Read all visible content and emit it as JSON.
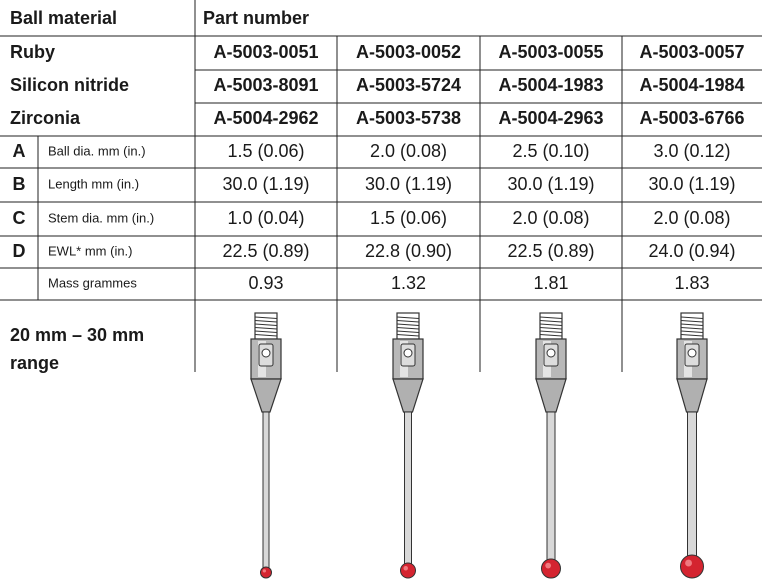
{
  "header": {
    "material": "Ball material",
    "part_number": "Part number"
  },
  "materials": [
    {
      "name": "Ruby",
      "parts": [
        "A-5003-0051",
        "A-5003-0052",
        "A-5003-0055",
        "A-5003-0057"
      ]
    },
    {
      "name": "Silicon nitride",
      "parts": [
        "A-5003-8091",
        "A-5003-5724",
        "A-5004-1983",
        "A-5004-1984"
      ]
    },
    {
      "name": "Zirconia",
      "parts": [
        "A-5004-2962",
        "A-5003-5738",
        "A-5004-2963",
        "A-5003-6766"
      ]
    }
  ],
  "specs": [
    {
      "letter": "A",
      "label": "Ball dia. mm (in.)",
      "values": [
        "1.5 (0.06)",
        "2.0 (0.08)",
        "2.5 (0.10)",
        "3.0 (0.12)"
      ]
    },
    {
      "letter": "B",
      "label": "Length mm (in.)",
      "values": [
        "30.0 (1.19)",
        "30.0 (1.19)",
        "30.0 (1.19)",
        "30.0 (1.19)"
      ]
    },
    {
      "letter": "C",
      "label": "Stem dia. mm (in.)",
      "values": [
        "1.0 (0.04)",
        "1.5 (0.06)",
        "2.0 (0.08)",
        "2.0 (0.08)"
      ]
    },
    {
      "letter": "D",
      "label": "EWL* mm (in.)",
      "values": [
        "22.5 (0.89)",
        "22.8 (0.90)",
        "22.5 (0.89)",
        "24.0 (0.94)"
      ]
    },
    {
      "label": "Mass grammes",
      "values": [
        "0.93",
        "1.32",
        "1.81",
        "1.83"
      ]
    }
  ],
  "range_label": [
    "20 mm – 30 mm",
    "range"
  ]
}
